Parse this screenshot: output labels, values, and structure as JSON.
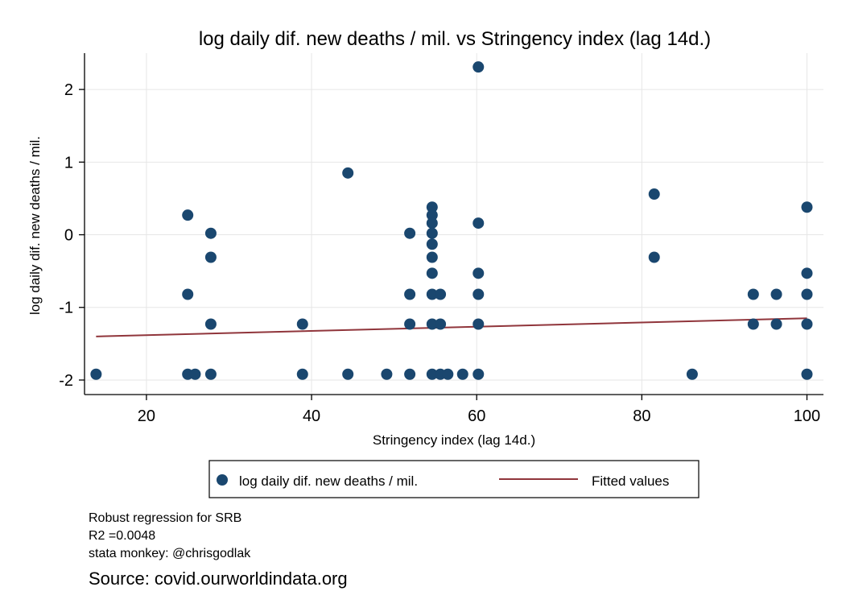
{
  "chart_data": {
    "type": "scatter",
    "title": "log daily dif. new deaths / mil. vs Stringency index (lag 14d.)",
    "xlabel": "Stringency index (lag 14d.)",
    "ylabel": "log daily dif. new deaths / mil.",
    "xlim": [
      12.5,
      102
    ],
    "ylim": [
      -2.2,
      2.5
    ],
    "xticks": [
      20,
      40,
      60,
      80,
      100
    ],
    "yticks": [
      -2,
      -1,
      0,
      1,
      2
    ],
    "grid": true,
    "legend_position": "bottom",
    "series": [
      {
        "name": "log daily dif. new deaths / mil.",
        "color": "#1a476f",
        "points": [
          [
            13.9,
            -1.92
          ],
          [
            25.0,
            0.27
          ],
          [
            25.0,
            -0.82
          ],
          [
            25.0,
            -1.92
          ],
          [
            25.9,
            -1.92
          ],
          [
            27.8,
            0.02
          ],
          [
            27.8,
            -0.31
          ],
          [
            27.8,
            -1.23
          ],
          [
            27.8,
            -1.92
          ],
          [
            38.9,
            -1.23
          ],
          [
            38.9,
            -1.92
          ],
          [
            44.4,
            0.85
          ],
          [
            44.4,
            -1.92
          ],
          [
            49.1,
            -1.92
          ],
          [
            51.9,
            0.02
          ],
          [
            51.9,
            -0.82
          ],
          [
            51.9,
            -1.23
          ],
          [
            51.9,
            -1.92
          ],
          [
            54.6,
            0.38
          ],
          [
            54.6,
            0.27
          ],
          [
            54.6,
            0.16
          ],
          [
            54.6,
            0.02
          ],
          [
            54.6,
            -0.13
          ],
          [
            54.6,
            -0.31
          ],
          [
            54.6,
            -0.53
          ],
          [
            54.6,
            -0.82
          ],
          [
            54.6,
            -1.23
          ],
          [
            54.6,
            -1.92
          ],
          [
            55.6,
            -0.82
          ],
          [
            55.6,
            -1.23
          ],
          [
            55.6,
            -1.92
          ],
          [
            56.5,
            -1.92
          ],
          [
            58.3,
            -1.92
          ],
          [
            60.2,
            2.31
          ],
          [
            60.2,
            0.16
          ],
          [
            60.2,
            -0.53
          ],
          [
            60.2,
            -0.82
          ],
          [
            60.2,
            -1.23
          ],
          [
            60.2,
            -1.92
          ],
          [
            81.5,
            0.56
          ],
          [
            81.5,
            -0.31
          ],
          [
            86.1,
            -1.92
          ],
          [
            93.5,
            -0.82
          ],
          [
            93.5,
            -1.23
          ],
          [
            96.3,
            -0.82
          ],
          [
            96.3,
            -1.23
          ],
          [
            100,
            0.38
          ],
          [
            100,
            -0.53
          ],
          [
            100,
            -0.82
          ],
          [
            100,
            -1.23
          ],
          [
            100,
            -1.92
          ]
        ]
      },
      {
        "name": "Fitted values",
        "color": "#90353b",
        "line": [
          [
            13.9,
            -1.4
          ],
          [
            100,
            -1.15
          ]
        ]
      }
    ]
  },
  "notes": [
    "Robust regression for SRB",
    "R2 =0.0048",
    "stata monkey: @chrisgodlak"
  ],
  "source": "Source: covid.ourworldindata.org"
}
